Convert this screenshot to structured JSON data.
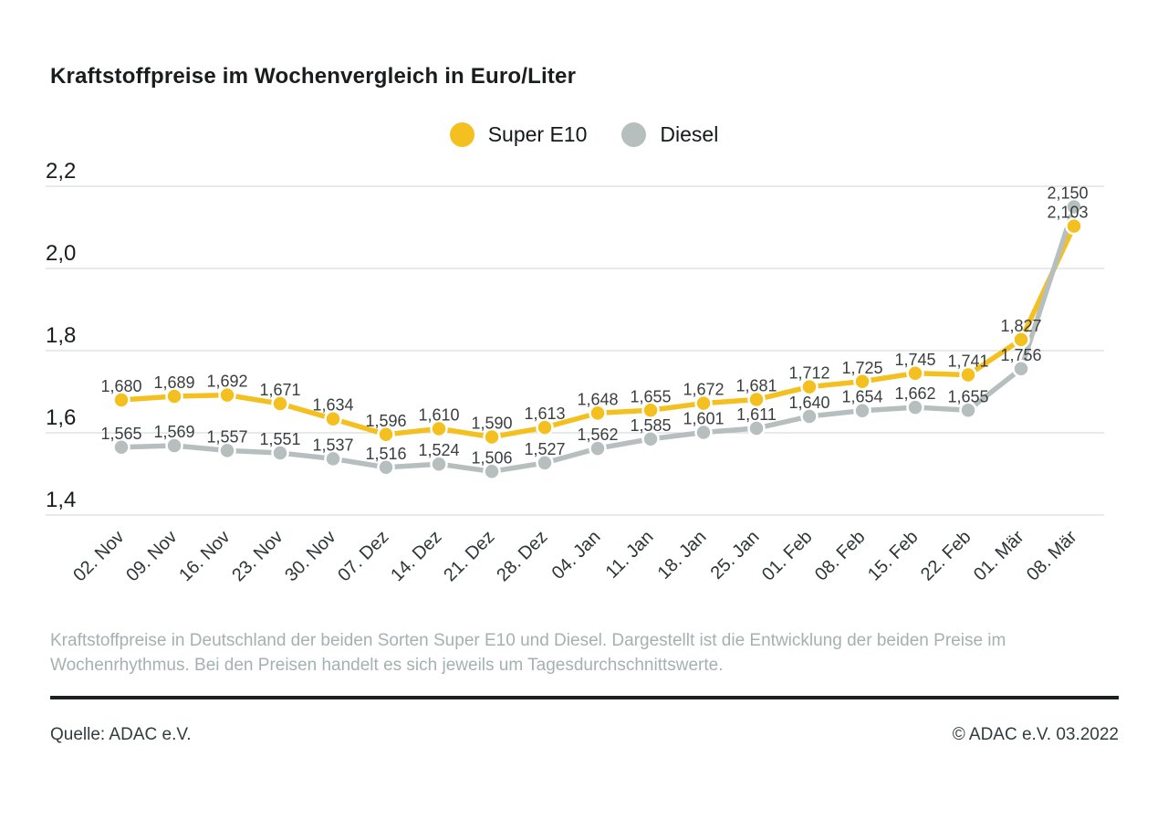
{
  "title": "Kraftstoffpreise im Wochenvergleich in Euro/Liter",
  "legend": {
    "items": [
      {
        "label": "Super E10",
        "color": "#F4C01F"
      },
      {
        "label": "Diesel",
        "color": "#B6BFBE"
      }
    ]
  },
  "chart_data": {
    "type": "line",
    "title": "Kraftstoffpreise im Wochenvergleich in Euro/Liter",
    "unit": "Euro/Liter",
    "categories": [
      "02. Nov",
      "09. Nov",
      "16. Nov",
      "23. Nov",
      "30. Nov",
      "07. Dez",
      "14. Dez",
      "21. Dez",
      "28. Dez",
      "04. Jan",
      "11. Jan",
      "18. Jan",
      "25. Jan",
      "01. Feb",
      "08. Feb",
      "15. Feb",
      "22. Feb",
      "01. Mär",
      "08. Mär"
    ],
    "series": [
      {
        "name": "Super E10",
        "color": "#F4C01F",
        "values": [
          1.68,
          1.689,
          1.692,
          1.671,
          1.634,
          1.596,
          1.61,
          1.59,
          1.613,
          1.648,
          1.655,
          1.672,
          1.681,
          1.712,
          1.725,
          1.745,
          1.741,
          1.827,
          2.103
        ]
      },
      {
        "name": "Diesel",
        "color": "#B6BFBE",
        "values": [
          1.565,
          1.569,
          1.557,
          1.551,
          1.537,
          1.516,
          1.524,
          1.506,
          1.527,
          1.562,
          1.585,
          1.601,
          1.611,
          1.64,
          1.654,
          1.662,
          1.655,
          1.756,
          2.15
        ]
      }
    ],
    "ylim": [
      1.4,
      2.2
    ],
    "yticks": [
      2.2,
      2.0,
      1.8,
      1.6,
      1.4
    ],
    "grid": "horizontal",
    "legend_position": "top-center",
    "value_labels": "above-points",
    "decimal_separator": ","
  },
  "caption": "Kraftstoffpreise in Deutschland der beiden Sorten Super E10 und Diesel. Dargestellt ist die Entwicklung der beiden Preise im Wochenrhythmus. Bei den Preisen handelt es sich jeweils um Tagesdurchschnittswerte.",
  "footer": {
    "source": "Quelle: ADAC e.V.",
    "copyright": "© ADAC e.V. 03.2022"
  },
  "colors": {
    "super_e10": "#F4C01F",
    "diesel": "#B6BFBE",
    "gridline": "#D9DCDC",
    "title_text": "#1A1D1E",
    "caption_text": "#A5B1B0",
    "footer_text": "#323C3D",
    "divider": "#1B2122",
    "value_label_text": "#3A3E3F",
    "axis_label_text": "#2E3536"
  }
}
